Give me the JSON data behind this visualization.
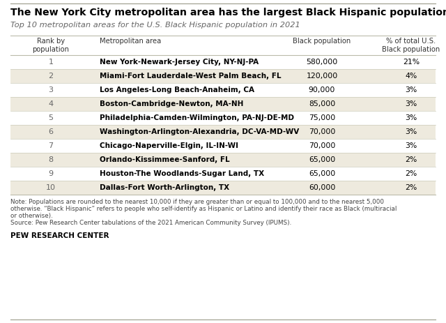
{
  "title": "The New York City metropolitan area has the largest Black Hispanic population",
  "subtitle": "Top 10 metropolitan areas for the U.S. Black Hispanic population in 2021",
  "col_headers_rank": "Rank by\npopulation",
  "col_headers_metro": "Metropolitan area",
  "col_headers_pop": "Black population",
  "col_headers_pct": "% of total U.S.\nBlack population",
  "ranks": [
    1,
    2,
    3,
    4,
    5,
    6,
    7,
    8,
    9,
    10
  ],
  "metro_areas": [
    "New York-Newark-Jersey City, NY-NJ-PA",
    "Miami-Fort Lauderdale-West Palm Beach, FL",
    "Los Angeles-Long Beach-Anaheim, CA",
    "Boston-Cambridge-Newton, MA-NH",
    "Philadelphia-Camden-Wilmington, PA-NJ-DE-MD",
    "Washington-Arlington-Alexandria, DC-VA-MD-WV",
    "Chicago-Naperville-Elgin, IL-IN-WI",
    "Orlando-Kissimmee-Sanford, FL",
    "Houston-The Woodlands-Sugar Land, TX",
    "Dallas-Fort Worth-Arlington, TX"
  ],
  "black_population": [
    "580,000",
    "120,000",
    "90,000",
    "85,000",
    "75,000",
    "70,000",
    "70,000",
    "65,000",
    "65,000",
    "60,000"
  ],
  "pct_total": [
    "21%",
    "4%",
    "3%",
    "3%",
    "3%",
    "3%",
    "3%",
    "2%",
    "2%",
    "2%"
  ],
  "row_colors": [
    "#ffffff",
    "#eeeade",
    "#ffffff",
    "#eeeade",
    "#ffffff",
    "#eeeade",
    "#ffffff",
    "#eeeade",
    "#ffffff",
    "#eeeade"
  ],
  "note_line1": "Note: Populations are rounded to the nearest 10,000 if they are greater than or equal to 100,000 and to the nearest 5,000",
  "note_line2": "otherwise. “Black Hispanic” refers to people who self-identify as Hispanic or Latino and identify their race as Black (multiracial",
  "note_line3": "or otherwise).",
  "note_line4": "Source: Pew Research Center tabulations of the 2021 American Community Survey (IPUMS).",
  "footer_text": "PEW RESEARCH CENTER",
  "bg_color": "#ffffff",
  "title_color": "#000000",
  "subtitle_color": "#666666",
  "header_text_color": "#333333",
  "text_color": "#000000",
  "note_color": "#444444",
  "line_color": "#bbbbaa",
  "row_line_color": "#ccccbb",
  "top_border_color": "#999988"
}
